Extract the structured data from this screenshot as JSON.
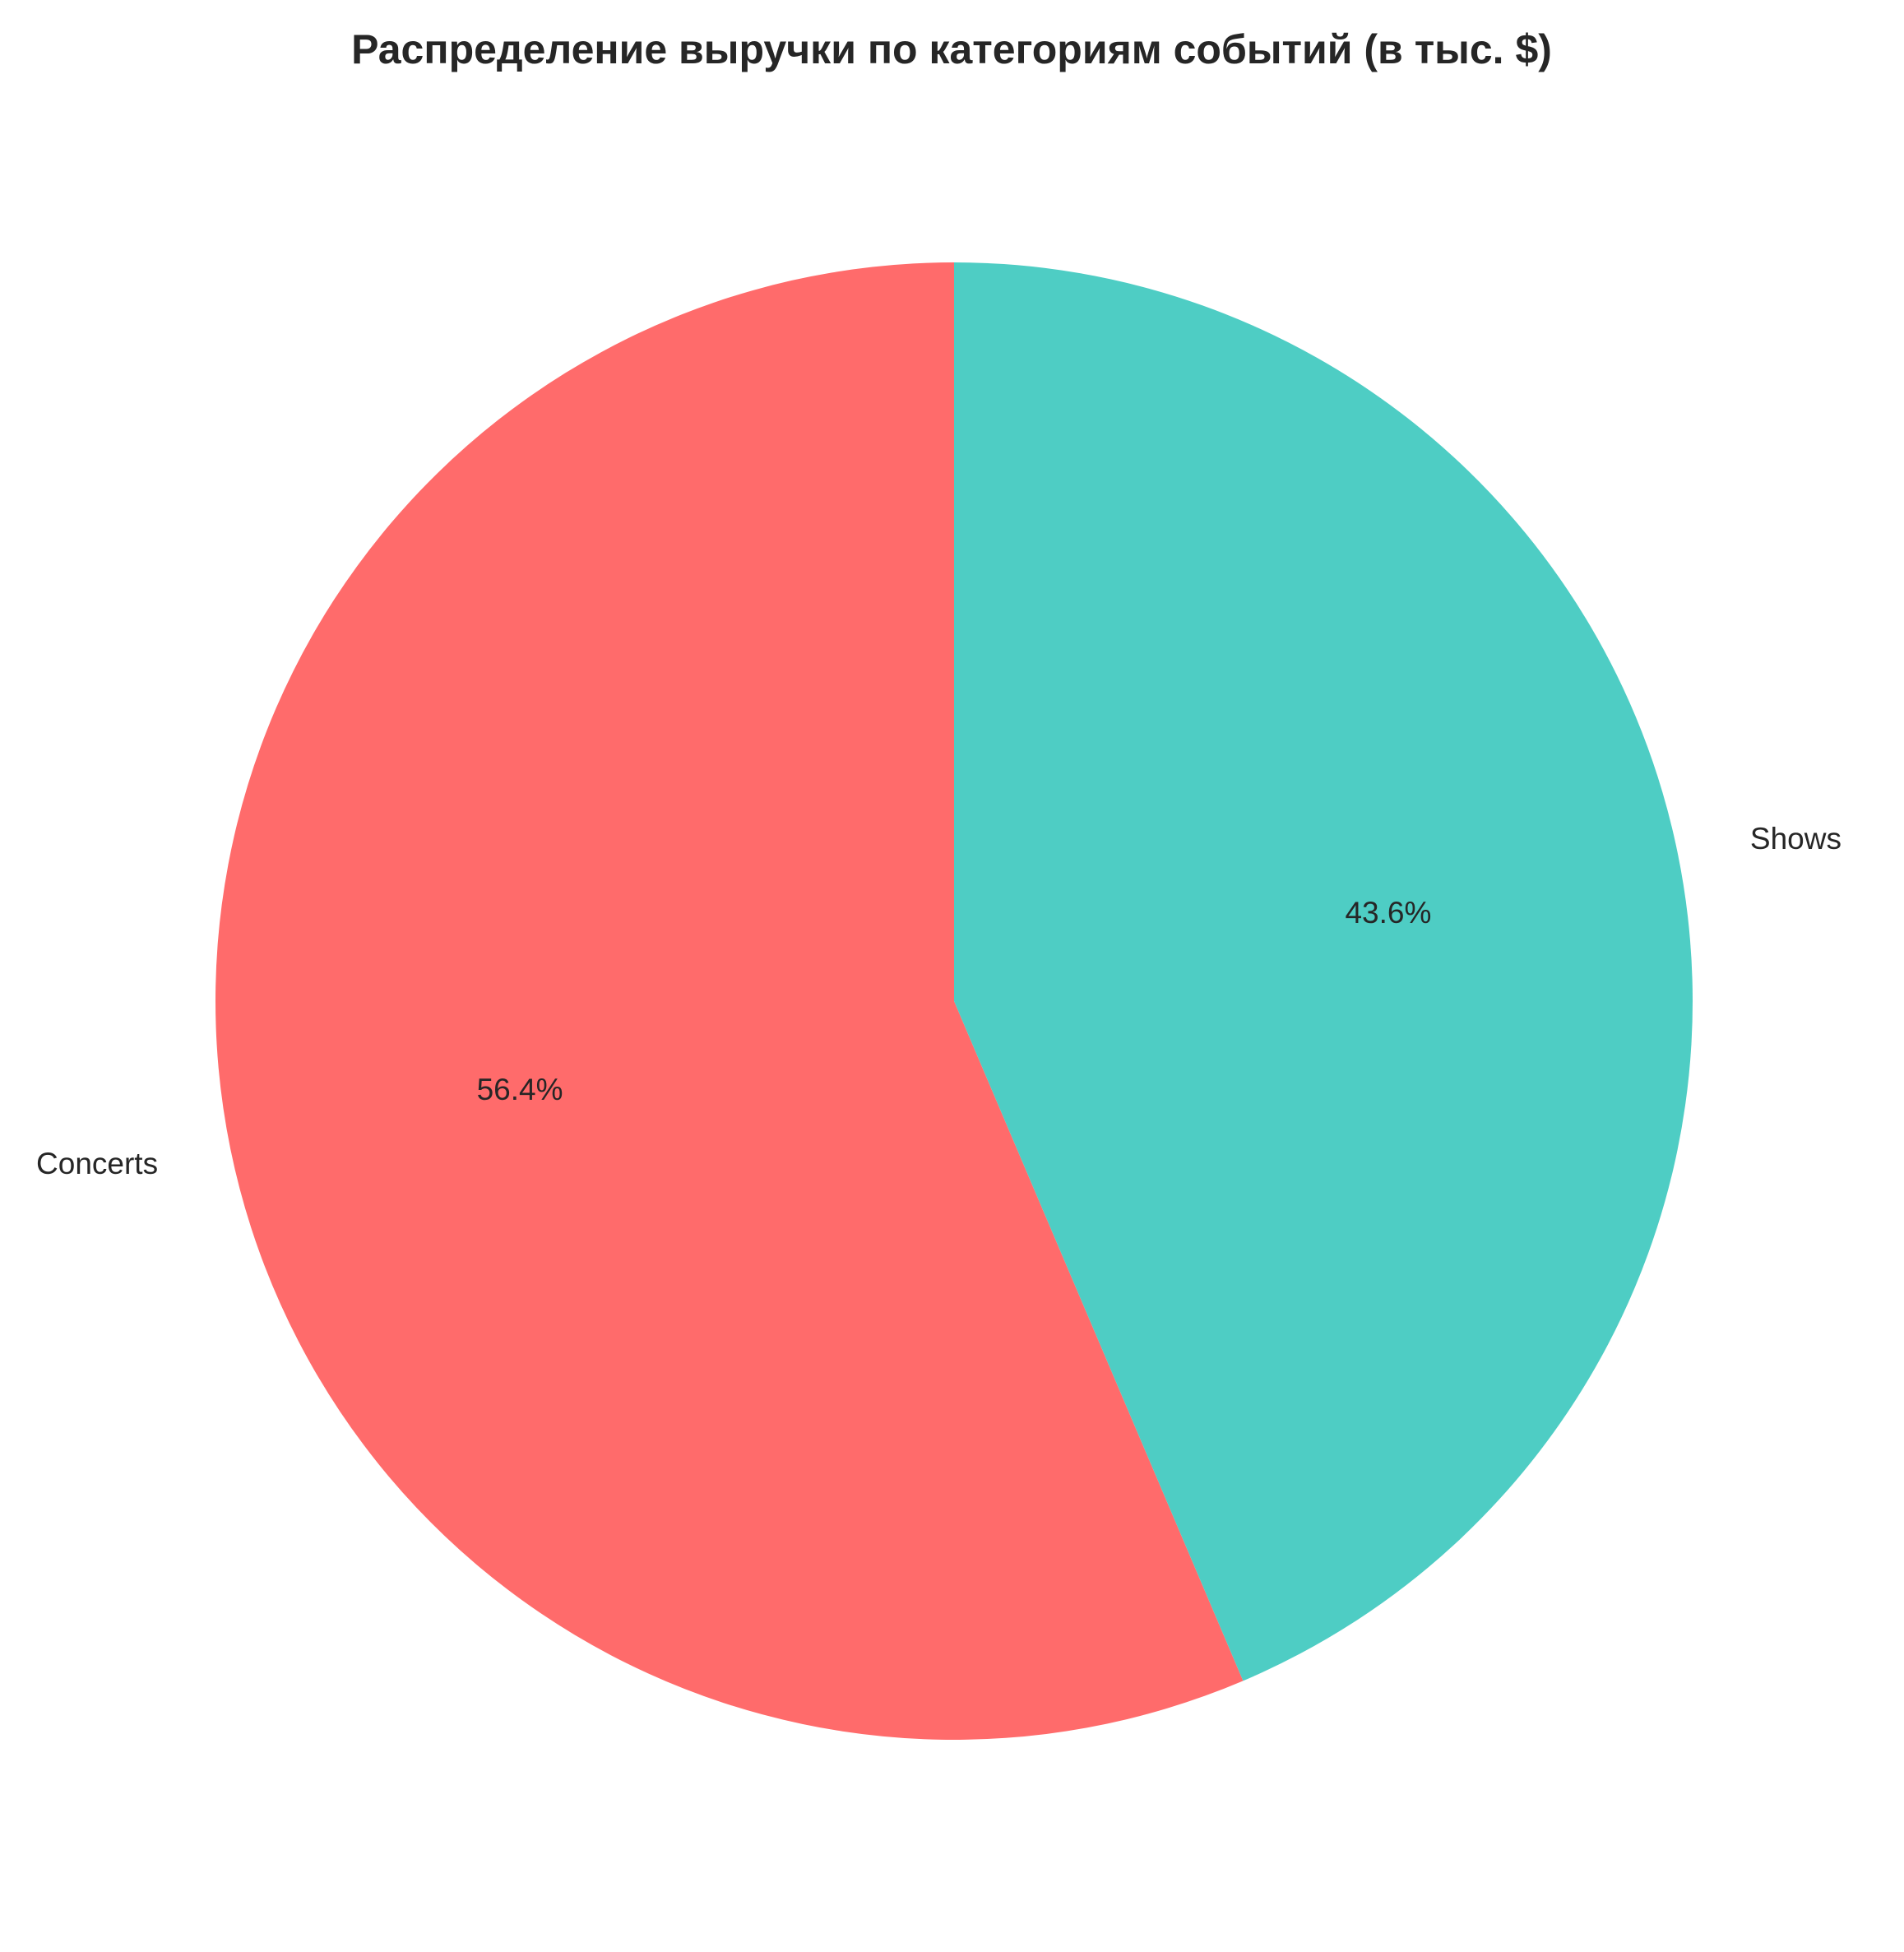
{
  "chart_data": {
    "type": "pie",
    "title": "Распределение выручки по категориям событий (в тыс. $)",
    "categories": [
      "Concerts",
      "Shows"
    ],
    "values": [
      56.4,
      43.6
    ],
    "percent_labels": [
      "56.4%",
      "43.6%"
    ],
    "colors": [
      "#FF6B6B",
      "#4ECDC4"
    ],
    "start_angle_deg": 90,
    "direction": "counterclockwise",
    "legend": "none"
  }
}
